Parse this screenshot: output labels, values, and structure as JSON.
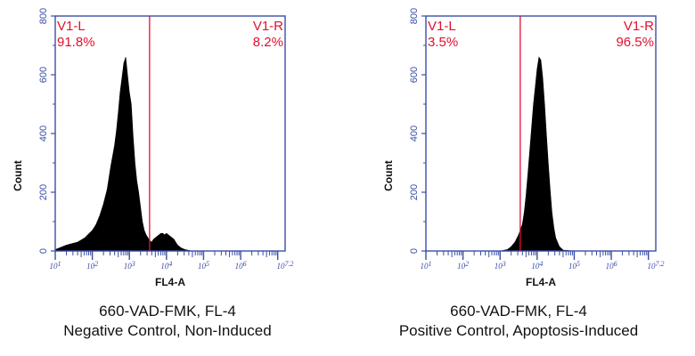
{
  "colors": {
    "axis": "#3a4ea6",
    "gate": "#e0102f",
    "fill": "#000000",
    "text": "#111111"
  },
  "chart_data": [
    {
      "type": "histogram",
      "xlabel": "FL4-A",
      "ylabel": "Count",
      "xscale": "log",
      "xlim": [
        10,
        15848932
      ],
      "ylim": [
        0,
        800
      ],
      "x_tick_labels": [
        "10^1",
        "10^2",
        "10^3",
        "10^4",
        "10^5",
        "10^6",
        "10^7.2"
      ],
      "y_ticks": [
        0,
        200,
        400,
        600,
        800
      ],
      "gate_x": 3500,
      "gates": [
        {
          "name": "V1-L",
          "percent": "91.8%",
          "side": "left"
        },
        {
          "name": "V1-R",
          "percent": "8.2%",
          "side": "right"
        }
      ],
      "caption": [
        "660-VAD-FMK, FL-4",
        "Negative Control, Non-Induced"
      ],
      "histogram": {
        "log10_x": [
          1.0,
          1.3,
          1.6,
          1.8,
          2.0,
          2.1,
          2.2,
          2.3,
          2.4,
          2.5,
          2.6,
          2.65,
          2.7,
          2.75,
          2.8,
          2.85,
          2.9,
          2.95,
          3.0,
          3.05,
          3.1,
          3.15,
          3.2,
          3.25,
          3.3,
          3.35,
          3.4,
          3.45,
          3.5,
          3.55,
          3.6,
          3.65,
          3.7,
          3.75,
          3.8,
          3.85,
          3.9,
          3.95,
          4.0,
          4.05,
          4.1,
          4.15,
          4.2,
          4.25,
          4.3,
          4.4,
          4.5,
          4.6,
          4.7,
          5.0,
          6.0,
          7.2
        ],
        "counts": [
          5,
          20,
          30,
          45,
          70,
          90,
          120,
          160,
          210,
          290,
          360,
          410,
          470,
          540,
          590,
          640,
          660,
          600,
          540,
          500,
          390,
          300,
          240,
          200,
          150,
          100,
          70,
          55,
          45,
          35,
          30,
          40,
          45,
          50,
          55,
          60,
          60,
          55,
          60,
          55,
          50,
          45,
          40,
          30,
          20,
          10,
          5,
          2,
          0,
          0,
          0,
          0
        ]
      }
    },
    {
      "type": "histogram",
      "xlabel": "FL4-A",
      "ylabel": "Count",
      "xscale": "log",
      "xlim": [
        10,
        15848932
      ],
      "ylim": [
        0,
        800
      ],
      "x_tick_labels": [
        "10^1",
        "10^2",
        "10^3",
        "10^4",
        "10^5",
        "10^6",
        "10^7.2"
      ],
      "y_ticks": [
        0,
        200,
        400,
        600,
        800
      ],
      "gate_x": 3500,
      "gates": [
        {
          "name": "V1-L",
          "percent": "3.5%",
          "side": "left"
        },
        {
          "name": "V1-R",
          "percent": "96.5%",
          "side": "right"
        }
      ],
      "caption": [
        "660-VAD-FMK, FL-4",
        "Positive Control, Apoptosis-Induced"
      ],
      "histogram": {
        "log10_x": [
          1.0,
          3.0,
          3.2,
          3.3,
          3.4,
          3.5,
          3.6,
          3.65,
          3.7,
          3.75,
          3.8,
          3.85,
          3.9,
          3.95,
          4.0,
          4.05,
          4.1,
          4.15,
          4.2,
          4.25,
          4.3,
          4.35,
          4.4,
          4.45,
          4.5,
          4.6,
          4.7,
          5.0,
          6.0,
          7.2
        ],
        "counts": [
          0,
          0,
          5,
          15,
          30,
          55,
          90,
          130,
          190,
          260,
          340,
          420,
          500,
          560,
          620,
          660,
          650,
          590,
          500,
          400,
          300,
          210,
          130,
          80,
          45,
          15,
          3,
          0,
          0,
          0
        ]
      }
    }
  ]
}
